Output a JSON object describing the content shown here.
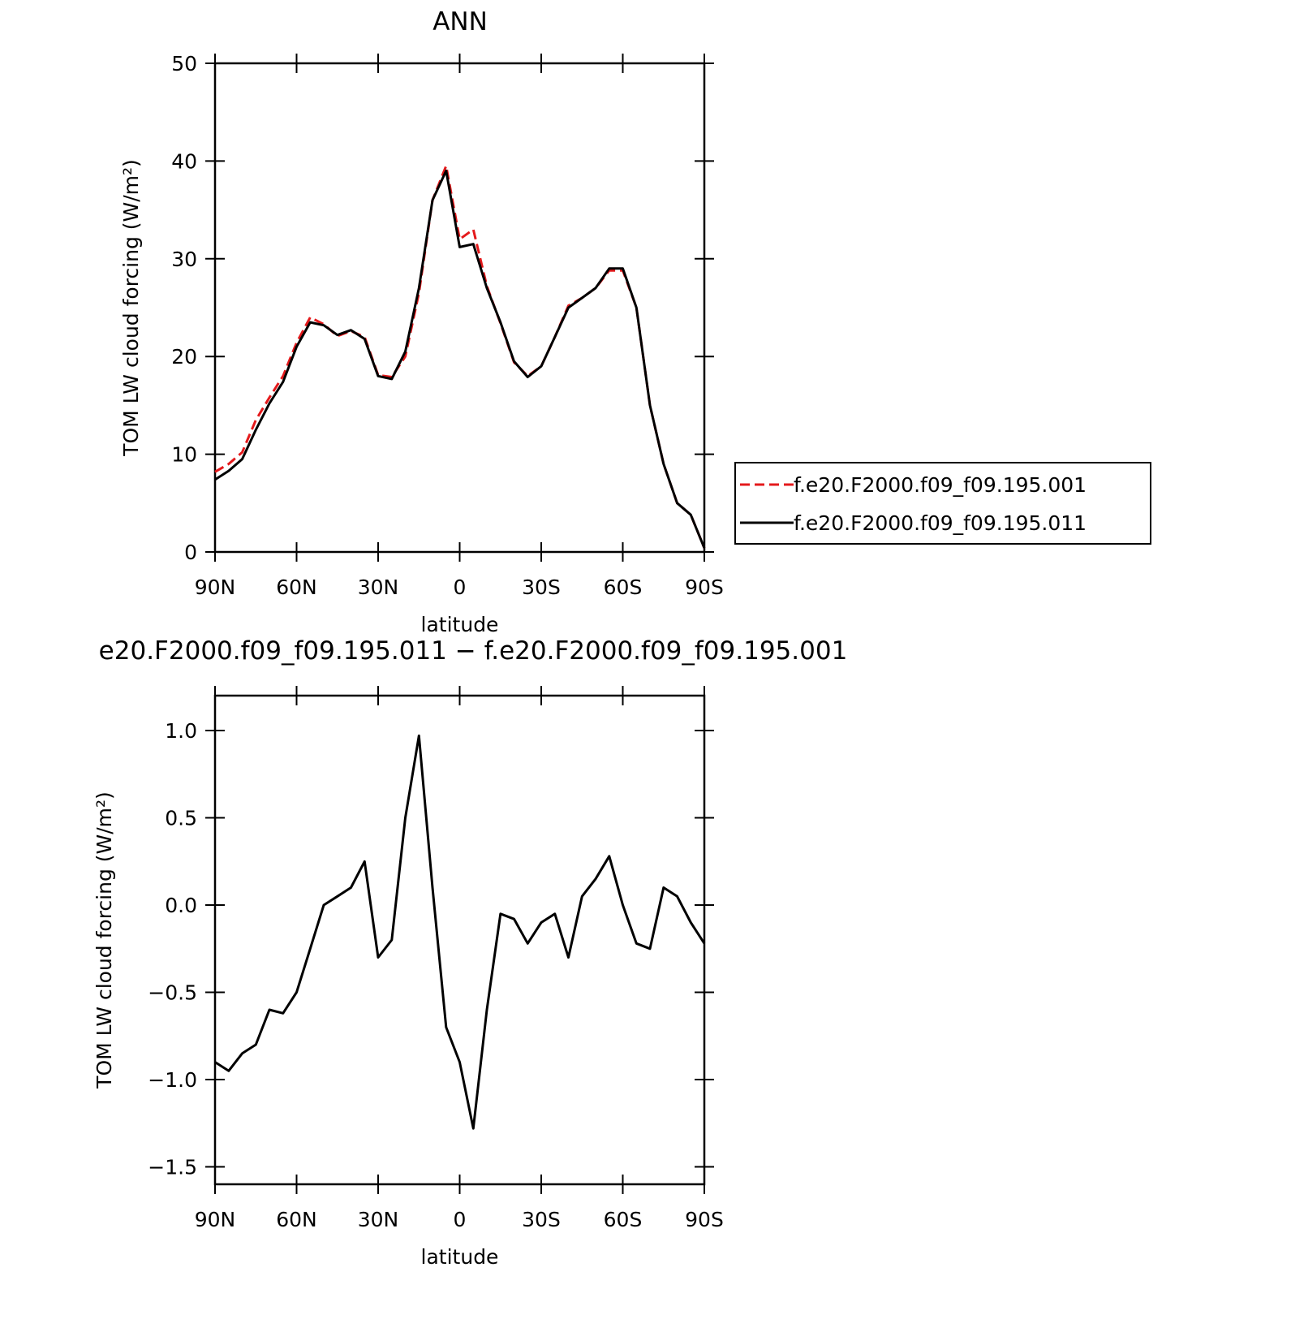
{
  "chart_data": [
    {
      "type": "line",
      "title": "ANN",
      "xlabel": "latitude",
      "ylabel": "TOM LW cloud forcing (W/m²)",
      "x": [
        90,
        85,
        80,
        75,
        70,
        65,
        60,
        55,
        50,
        45,
        40,
        35,
        30,
        25,
        20,
        15,
        10,
        5,
        0,
        -5,
        -10,
        -15,
        -20,
        -25,
        -30,
        -35,
        -40,
        -45,
        -50,
        -55,
        -60,
        -65,
        -70,
        -75,
        -80,
        -85,
        -90
      ],
      "series": [
        {
          "name": "f.e20.F2000.f09_f09.195.001",
          "color": "#e41a1c",
          "dash": true,
          "values": [
            8.2,
            9.0,
            10.2,
            13.5,
            15.8,
            18.0,
            21.4,
            24.0,
            23.3,
            22.1,
            22.6,
            22.0,
            18.1,
            17.9,
            20.0,
            26.5,
            36.0,
            39.5,
            32.0,
            33.0,
            27.2,
            23.4,
            19.4,
            18.0,
            19.0,
            22.0,
            25.2,
            26.0,
            27.0,
            28.8,
            28.8,
            25.0,
            15.0,
            9.0,
            5.0,
            3.8,
            0.4
          ]
        },
        {
          "name": "f.e20.F2000.f09_f09.195.011",
          "color": "#000000",
          "dash": false,
          "values": [
            7.4,
            8.3,
            9.5,
            12.5,
            15.2,
            17.4,
            21.0,
            23.5,
            23.2,
            22.2,
            22.7,
            21.8,
            18.0,
            17.7,
            20.5,
            27.0,
            36.0,
            39.0,
            31.2,
            31.5,
            27.0,
            23.5,
            19.5,
            17.9,
            19.0,
            22.0,
            25.0,
            26.0,
            27.0,
            29.0,
            29.0,
            25.0,
            15.0,
            9.0,
            5.0,
            3.8,
            0.4
          ]
        }
      ],
      "xlim": [
        90,
        -90
      ],
      "xticks": [
        {
          "value": 90,
          "label": "90N"
        },
        {
          "value": 60,
          "label": "60N"
        },
        {
          "value": 30,
          "label": "30N"
        },
        0,
        {
          "value": -30,
          "label": "30S"
        },
        {
          "value": -60,
          "label": "60S"
        },
        {
          "value": -90,
          "label": "90S"
        }
      ],
      "ylim": [
        0,
        50
      ],
      "yticks": [
        0,
        10,
        20,
        30,
        40,
        50
      ],
      "legend": "right"
    },
    {
      "type": "line",
      "title": "e20.F2000.f09_f09.195.011 − f.e20.F2000.f09_f09.195.001",
      "xlabel": "latitude",
      "ylabel": "TOM LW cloud forcing (W/m²)",
      "x": [
        90,
        85,
        80,
        75,
        70,
        65,
        60,
        55,
        50,
        45,
        40,
        35,
        30,
        25,
        20,
        15,
        10,
        5,
        0,
        -5,
        -10,
        -15,
        -20,
        -25,
        -30,
        -35,
        -40,
        -45,
        -50,
        -55,
        -60,
        -65,
        -70,
        -75,
        -80,
        -85,
        -90
      ],
      "series": [
        {
          "color": "#000000",
          "dash": false,
          "values": [
            -0.9,
            -0.95,
            -0.85,
            -0.8,
            -0.6,
            -0.62,
            -0.5,
            -0.25,
            0.0,
            0.05,
            0.1,
            0.25,
            -0.3,
            -0.2,
            0.5,
            0.97,
            0.1,
            -0.7,
            -0.9,
            -1.28,
            -0.6,
            -0.05,
            -0.08,
            -0.22,
            -0.1,
            -0.05,
            -0.3,
            0.05,
            0.15,
            0.28,
            0.0,
            -0.22,
            -0.25,
            0.1,
            0.05,
            -0.1,
            -0.22
          ]
        }
      ],
      "xlim": [
        90,
        -90
      ],
      "xticks": [
        {
          "value": 90,
          "label": "90N"
        },
        {
          "value": 60,
          "label": "60N"
        },
        {
          "value": 30,
          "label": "30N"
        },
        0,
        {
          "value": -30,
          "label": "30S"
        },
        {
          "value": -60,
          "label": "60S"
        },
        {
          "value": -90,
          "label": "90S"
        }
      ],
      "ylim": [
        -1.6,
        1.2
      ],
      "yticks": [
        {
          "value": -1.5,
          "label": "−1.5"
        },
        {
          "value": -1.0,
          "label": "−1.0"
        },
        {
          "value": -0.5,
          "label": "−0.5"
        },
        {
          "value": 0.0,
          "label": "0.0"
        },
        {
          "value": 0.5,
          "label": "0.5"
        },
        {
          "value": 1.0,
          "label": "1.0"
        }
      ]
    }
  ]
}
